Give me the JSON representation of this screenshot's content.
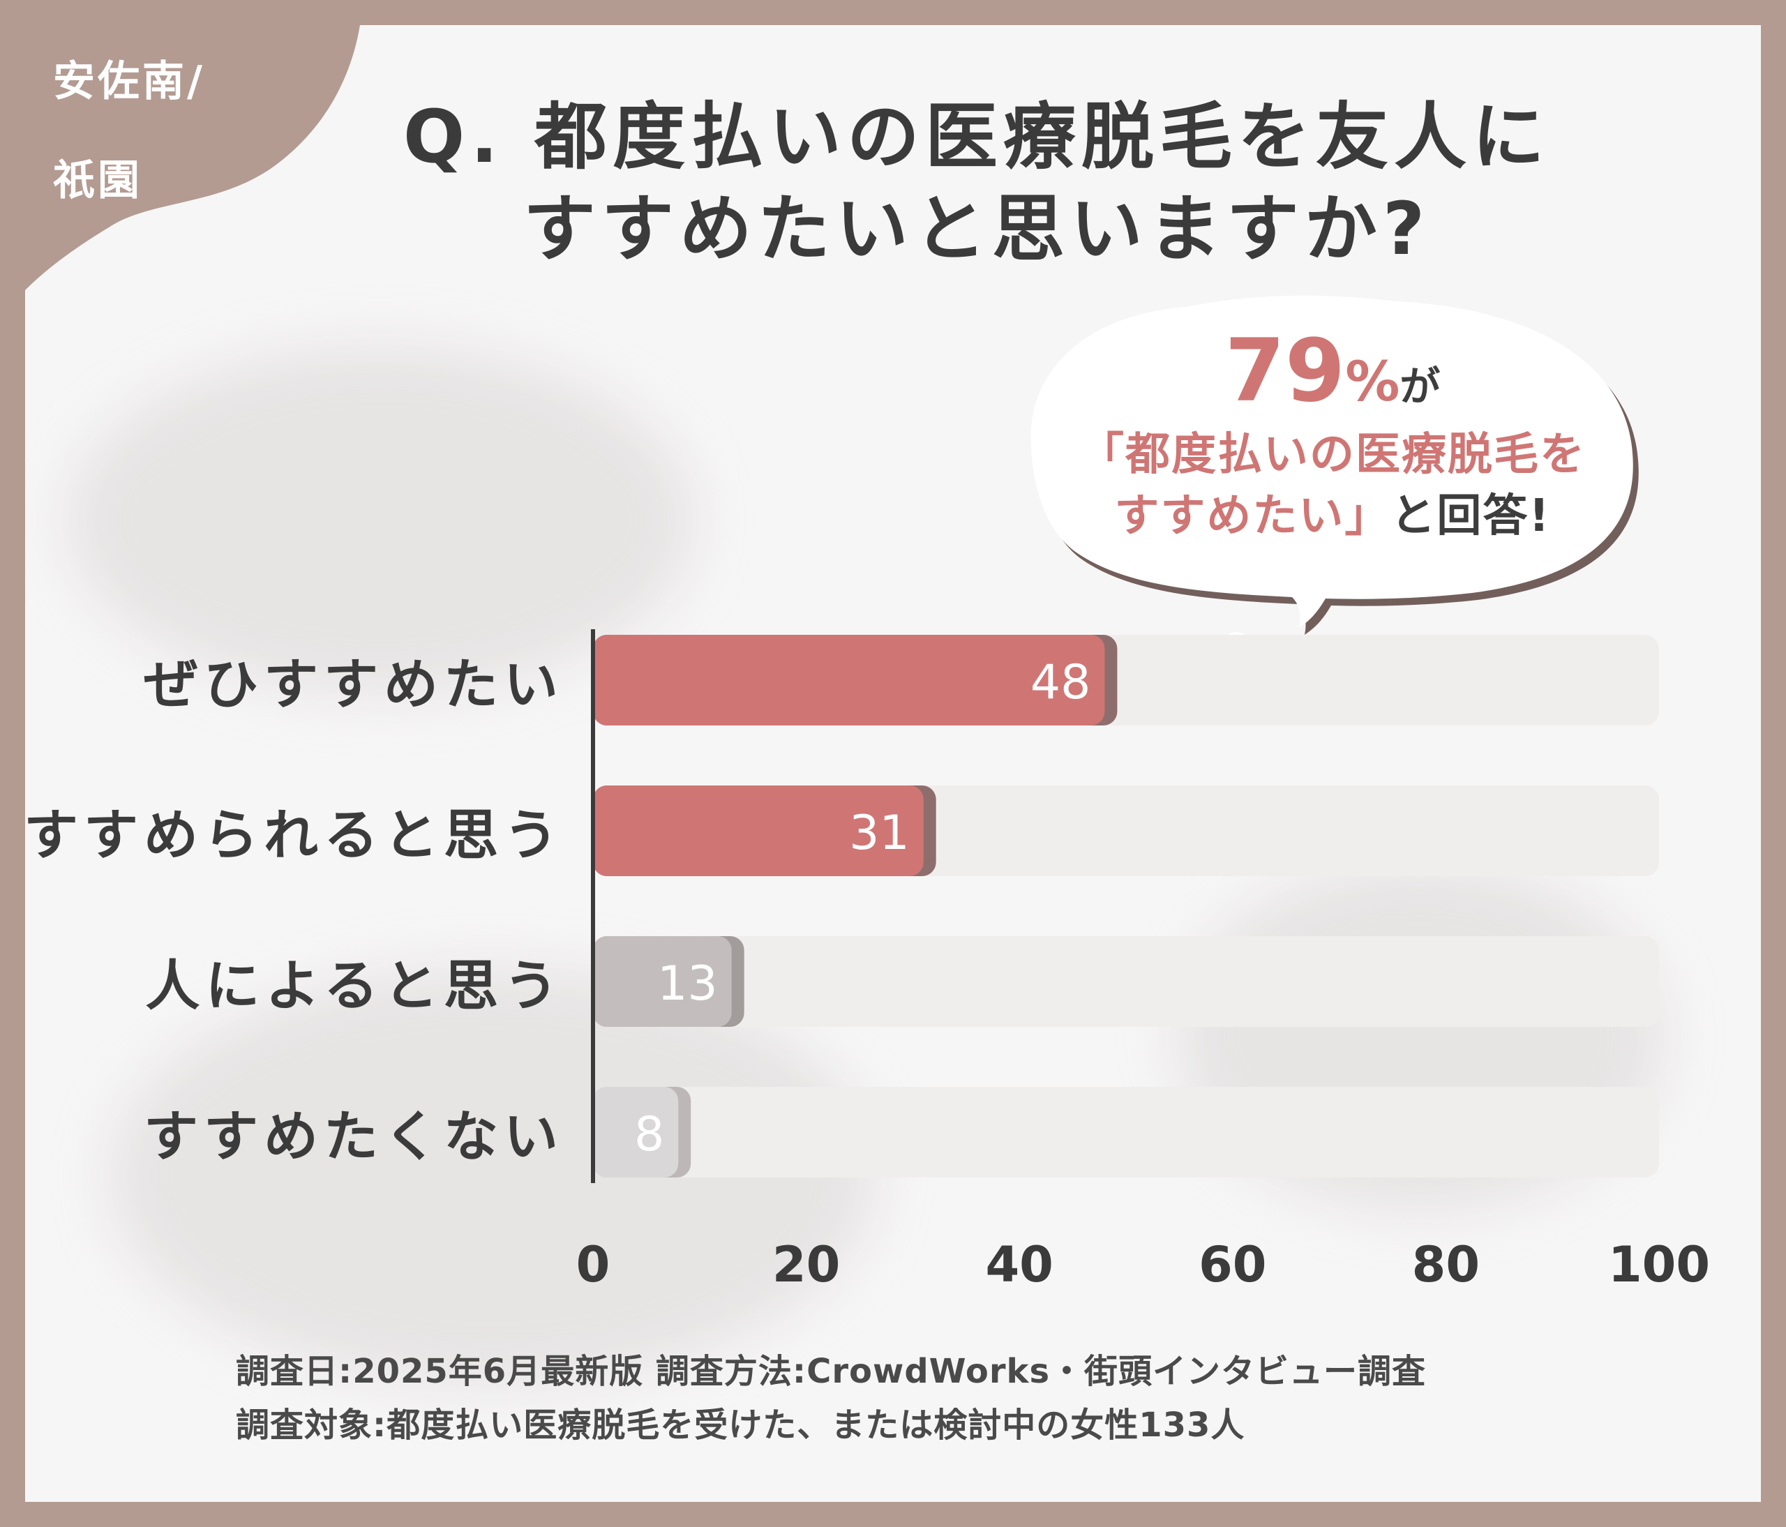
{
  "corner": {
    "line1": "安佐南/",
    "line2": "祇園"
  },
  "title": {
    "line1": "Q. 都度払いの医療脱毛を友人に",
    "line2": "すすめたいと思いますか?"
  },
  "callout": {
    "percent_number": "79",
    "percent_sign": "%",
    "percent_suffix": "が",
    "line2": "「都度払いの医療脱毛を",
    "line3_highlight": "すすめたい」",
    "line3_rest": "と回答!"
  },
  "chart_data": {
    "type": "bar",
    "orientation": "horizontal",
    "categories": [
      "ぜひすすめたい",
      "すすめられると思う",
      "人によると思う",
      "すすめたくない"
    ],
    "values": [
      48,
      31,
      13,
      8
    ],
    "xlim": [
      0,
      100
    ],
    "xticks": [
      "0",
      "20",
      "40",
      "60",
      "80",
      "100"
    ],
    "colors": [
      "#cf7674",
      "#cf7674",
      "#c3bebd",
      "#d9d7d7"
    ],
    "shadow_colors": [
      "#8e6e6c",
      "#8e6e6c",
      "#a29c9b",
      "#bdb8b7"
    ],
    "track_color": "#f0eeed",
    "axis_color": "#3b3b3b",
    "label_color": "#ffffff"
  },
  "footer": {
    "line1": "調査日:2025年6月最新版  調査方法:CrowdWorks・街頭インタビュー調査",
    "line2": "調査対象:都度払い医療脱毛を受けた、または検討中の女性133人"
  }
}
